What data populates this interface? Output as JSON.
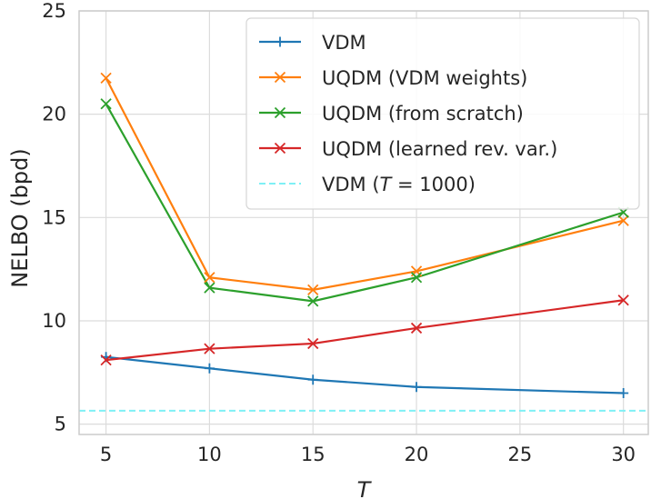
{
  "chart_data": {
    "type": "line",
    "title": "",
    "xlabel": "T",
    "ylabel": "NELBO (bpd)",
    "xlim": [
      3.7,
      31.2
    ],
    "ylim": [
      4.5,
      25
    ],
    "xticks": [
      5,
      10,
      15,
      20,
      25,
      30
    ],
    "yticks": [
      5,
      10,
      15,
      20,
      25
    ],
    "grid": true,
    "legend_position": "top-right",
    "x": [
      5,
      10,
      15,
      20,
      30
    ],
    "series": [
      {
        "name": "VDM",
        "color": "#1f77b4",
        "marker": "+",
        "values": [
          8.25,
          7.7,
          7.15,
          6.8,
          6.5
        ]
      },
      {
        "name": "UQDM (VDM weights)",
        "color": "#ff7f0e",
        "marker": "x",
        "values": [
          21.75,
          12.1,
          11.5,
          12.4,
          14.85
        ]
      },
      {
        "name": "UQDM (from scratch)",
        "color": "#2ca02c",
        "marker": "x",
        "values": [
          20.5,
          11.6,
          10.95,
          12.1,
          15.25
        ]
      },
      {
        "name": "UQDM (learned rev. var.)",
        "color": "#d62728",
        "marker": "x",
        "values": [
          8.1,
          8.65,
          8.9,
          9.65,
          11.0
        ]
      }
    ],
    "reference_line": {
      "name": "VDM (",
      "name_italic": "T",
      "name_suffix": " = 1000)",
      "value": 5.65,
      "color": "#7ff0f5",
      "style": "dashed"
    }
  }
}
